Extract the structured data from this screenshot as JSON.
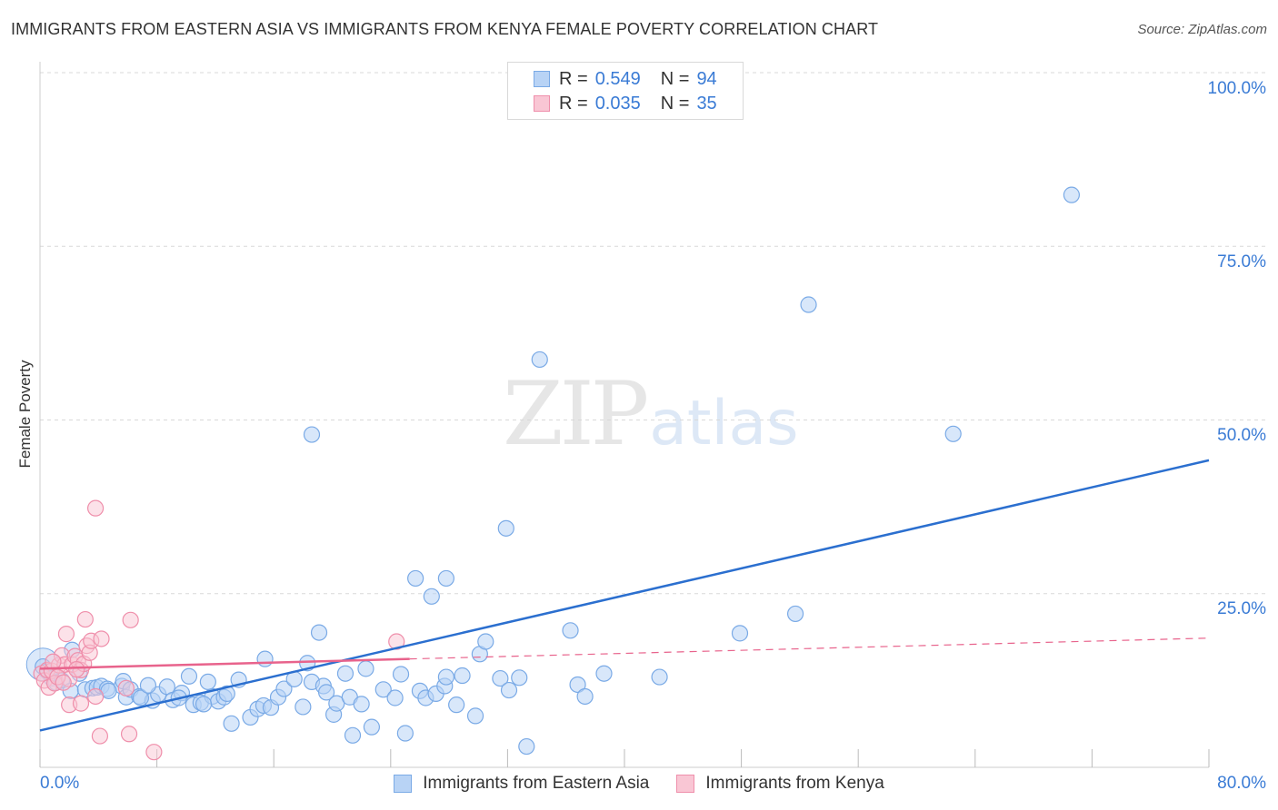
{
  "header": {
    "title": "IMMIGRANTS FROM EASTERN ASIA VS IMMIGRANTS FROM KENYA FEMALE POVERTY CORRELATION CHART",
    "source": "Source: ZipAtlas.com"
  },
  "watermark": {
    "zip": "ZIP",
    "atlas": "atlas"
  },
  "legend": {
    "rows": [
      {
        "r_label": "R =",
        "r_value": "0.549",
        "n_label": "N =",
        "n_value": "94"
      },
      {
        "r_label": "R =",
        "r_value": "0.035",
        "n_label": "N =",
        "n_value": "35"
      }
    ]
  },
  "colors": {
    "blue_fill": "#b8d3f5",
    "blue_stroke": "#7aaae6",
    "blue_line": "#2b6fcf",
    "pink_fill": "#f9c6d4",
    "pink_stroke": "#ef8fab",
    "pink_line": "#e8638c",
    "grid": "#d8d8d8",
    "tick_text": "#3a7bd5"
  },
  "chart_data": {
    "type": "scatter",
    "title": "IMMIGRANTS FROM EASTERN ASIA VS IMMIGRANTS FROM KENYA FEMALE POVERTY CORRELATION CHART",
    "xlabel": "",
    "ylabel": "Female Poverty",
    "xlim": [
      0,
      80
    ],
    "ylim": [
      0,
      100
    ],
    "x_tick_labels": [
      "0.0%",
      "80.0%"
    ],
    "y_ticks": [
      25,
      50,
      75,
      100
    ],
    "y_tick_labels": [
      "25.0%",
      "50.0%",
      "75.0%",
      "100.0%"
    ],
    "grid": true,
    "legend_position": "top-center",
    "series": [
      {
        "name": "Immigrants from Eastern Asia",
        "color": "#7aaae6",
        "trend": {
          "x": [
            0,
            80
          ],
          "y": [
            5.3,
            44.2
          ]
        },
        "points": [
          [
            0.2,
            14.5
          ],
          [
            0.5,
            13.8
          ],
          [
            0.8,
            12.8
          ],
          [
            1.1,
            12.2
          ],
          [
            1.5,
            12.5
          ],
          [
            2.1,
            11.0
          ],
          [
            2.7,
            13.5
          ],
          [
            3.1,
            11.2
          ],
          [
            3.6,
            11.4
          ],
          [
            3.9,
            11.5
          ],
          [
            4.2,
            11.7
          ],
          [
            4.6,
            11.3
          ],
          [
            5.6,
            11.7
          ],
          [
            5.7,
            12.4
          ],
          [
            5.9,
            10.1
          ],
          [
            6.2,
            11.2
          ],
          [
            6.8,
            10.2
          ],
          [
            7.7,
            9.6
          ],
          [
            8.1,
            10.5
          ],
          [
            8.7,
            11.6
          ],
          [
            9.1,
            9.7
          ],
          [
            9.7,
            10.7
          ],
          [
            10.2,
            13.1
          ],
          [
            10.5,
            9.0
          ],
          [
            11.0,
            9.3
          ],
          [
            11.5,
            12.3
          ],
          [
            11.8,
            10.2
          ],
          [
            12.2,
            9.5
          ],
          [
            12.6,
            10.1
          ],
          [
            13.1,
            6.3
          ],
          [
            13.6,
            12.6
          ],
          [
            14.4,
            7.2
          ],
          [
            14.9,
            8.4
          ],
          [
            15.3,
            8.9
          ],
          [
            15.8,
            8.6
          ],
          [
            16.3,
            10.1
          ],
          [
            16.7,
            11.3
          ],
          [
            17.4,
            12.7
          ],
          [
            18.0,
            8.7
          ],
          [
            18.3,
            15.0
          ],
          [
            18.6,
            12.3
          ],
          [
            19.4,
            11.7
          ],
          [
            19.6,
            10.8
          ],
          [
            20.1,
            7.6
          ],
          [
            20.3,
            9.2
          ],
          [
            21.2,
            10.1
          ],
          [
            21.4,
            4.6
          ],
          [
            22.0,
            9.1
          ],
          [
            22.7,
            5.8
          ],
          [
            23.5,
            11.2
          ],
          [
            24.3,
            10.0
          ],
          [
            25.0,
            4.9
          ],
          [
            26.0,
            11.0
          ],
          [
            26.4,
            10.0
          ],
          [
            27.1,
            10.6
          ],
          [
            27.7,
            11.7
          ],
          [
            27.8,
            13.0
          ],
          [
            28.5,
            9.0
          ],
          [
            28.9,
            13.2
          ],
          [
            29.8,
            7.4
          ],
          [
            31.5,
            12.8
          ],
          [
            32.1,
            11.1
          ],
          [
            33.3,
            3.0
          ],
          [
            36.8,
            11.9
          ],
          [
            37.3,
            10.2
          ],
          [
            38.6,
            13.5
          ],
          [
            42.4,
            13.0
          ],
          [
            47.9,
            19.3
          ],
          [
            51.7,
            22.1
          ],
          [
            2.2,
            16.9
          ],
          [
            6.9,
            10.0
          ],
          [
            12.8,
            10.6
          ],
          [
            20.9,
            13.5
          ],
          [
            24.7,
            13.4
          ],
          [
            30.1,
            16.3
          ],
          [
            30.5,
            18.1
          ],
          [
            32.8,
            12.9
          ],
          [
            36.3,
            19.7
          ],
          [
            19.1,
            19.4
          ],
          [
            15.4,
            15.6
          ],
          [
            25.7,
            27.2
          ],
          [
            27.8,
            27.2
          ],
          [
            26.8,
            24.6
          ],
          [
            31.9,
            34.4
          ],
          [
            18.6,
            47.9
          ],
          [
            34.2,
            58.7
          ],
          [
            52.6,
            66.6
          ],
          [
            62.5,
            48.0
          ],
          [
            70.6,
            82.4
          ],
          [
            22.3,
            14.2
          ],
          [
            11.2,
            9.1
          ],
          [
            4.7,
            11.0
          ],
          [
            7.4,
            11.8
          ],
          [
            9.5,
            10.0
          ]
        ]
      },
      {
        "name": "Immigrants from Kenya",
        "color": "#ef8fab",
        "trend": {
          "x": [
            0,
            25.3
          ],
          "y": [
            14.2,
            15.6
          ]
        },
        "trend_dashed": {
          "x": [
            25.3,
            80
          ],
          "y": [
            15.6,
            18.6
          ]
        },
        "points": [
          [
            0.1,
            13.5
          ],
          [
            0.3,
            12.5
          ],
          [
            0.5,
            14.0
          ],
          [
            0.6,
            11.5
          ],
          [
            0.8,
            13.9
          ],
          [
            1.0,
            12.1
          ],
          [
            1.3,
            14.7
          ],
          [
            1.5,
            16.1
          ],
          [
            1.7,
            14.8
          ],
          [
            1.8,
            19.2
          ],
          [
            2.0,
            12.7
          ],
          [
            2.2,
            14.8
          ],
          [
            2.4,
            16.0
          ],
          [
            2.6,
            15.4
          ],
          [
            2.8,
            14.0
          ],
          [
            3.0,
            14.9
          ],
          [
            3.2,
            17.5
          ],
          [
            3.4,
            16.5
          ],
          [
            3.5,
            18.2
          ],
          [
            3.8,
            10.2
          ],
          [
            4.2,
            18.5
          ],
          [
            6.2,
            21.2
          ],
          [
            3.8,
            37.3
          ],
          [
            4.1,
            4.5
          ],
          [
            6.1,
            4.8
          ],
          [
            7.8,
            2.2
          ],
          [
            3.1,
            21.3
          ],
          [
            2.0,
            9.0
          ],
          [
            2.8,
            9.2
          ],
          [
            1.2,
            13.0
          ],
          [
            24.4,
            18.1
          ],
          [
            0.9,
            15.2
          ],
          [
            2.5,
            14.1
          ],
          [
            5.9,
            11.4
          ],
          [
            1.6,
            12.2
          ]
        ]
      }
    ]
  },
  "bottom_legend": {
    "items": [
      {
        "label": "Immigrants from Eastern Asia"
      },
      {
        "label": "Immigrants from Kenya"
      }
    ]
  }
}
